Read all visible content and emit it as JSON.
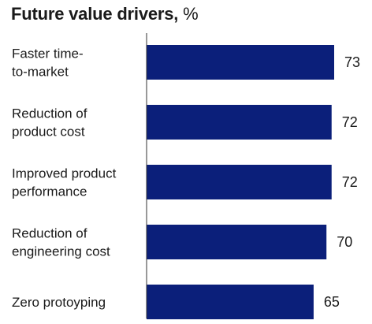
{
  "chart_data": {
    "type": "bar",
    "orientation": "horizontal",
    "title": "Future value drivers,",
    "title_unit": "%",
    "categories": [
      [
        "Faster time-",
        "to-market"
      ],
      [
        "Reduction of",
        "product cost"
      ],
      [
        "Improved product",
        "performance"
      ],
      [
        "Reduction of",
        "engineering cost"
      ],
      [
        "Zero protoyping"
      ]
    ],
    "values": [
      73,
      72,
      72,
      70,
      65
    ],
    "xlim": [
      0,
      73
    ],
    "grid": false,
    "legend": "none",
    "bar_color": "#0b1f7a",
    "axis_color": "#333333"
  }
}
